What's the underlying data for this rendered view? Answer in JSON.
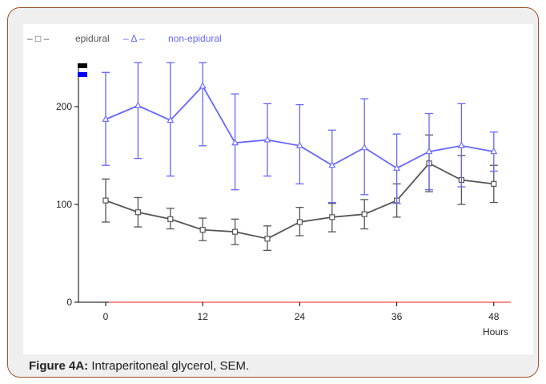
{
  "caption": {
    "label": "Figure 4A:",
    "text": " Intraperitoneal glycerol, SEM."
  },
  "legend": {
    "epidural_marker": "– □ –",
    "epidural_label": "epidural",
    "nonepidural_marker": "– Δ –",
    "nonepidural_label": "non-epidural"
  },
  "colors": {
    "epidural": "#555555",
    "nonepidural": "#6666ff",
    "axis": "#000000",
    "zero_line": "#ff6666",
    "frame_border": "#a0522d",
    "frame_bg": "#efefef"
  },
  "chart_data": {
    "type": "line",
    "xlabel": "Hours",
    "ylabel": "",
    "xlim": [
      -2.5,
      50
    ],
    "ylim": [
      0,
      245
    ],
    "x_ticks": [
      0,
      12,
      24,
      36,
      48
    ],
    "y_ticks": [
      0,
      100,
      200
    ],
    "x": [
      0,
      4,
      8,
      12,
      16,
      20,
      24,
      28,
      32,
      36,
      40,
      44,
      48
    ],
    "series": [
      {
        "name": "epidural",
        "marker": "square",
        "values": [
          104,
          92,
          85,
          74,
          72,
          65,
          82,
          87,
          90,
          104,
          142,
          125,
          121
        ],
        "err_upper": [
          126,
          107,
          96,
          86,
          85,
          78,
          97,
          101,
          105,
          121,
          171,
          150,
          140
        ],
        "err_lower": [
          82,
          77,
          75,
          63,
          59,
          53,
          68,
          72,
          75,
          87,
          113,
          100,
          102
        ]
      },
      {
        "name": "non-epidural",
        "marker": "triangle",
        "values": [
          187,
          201,
          186,
          221,
          163,
          166,
          160,
          140,
          158,
          137,
          154,
          160,
          154
        ],
        "err_upper": [
          235,
          245,
          245,
          245,
          213,
          203,
          202,
          176,
          208,
          172,
          193,
          203,
          174
        ],
        "err_lower": [
          140,
          147,
          129,
          160,
          115,
          129,
          121,
          102,
          110,
          101,
          115,
          118,
          134
        ]
      }
    ],
    "grid": false,
    "legend_position": "top-left"
  }
}
